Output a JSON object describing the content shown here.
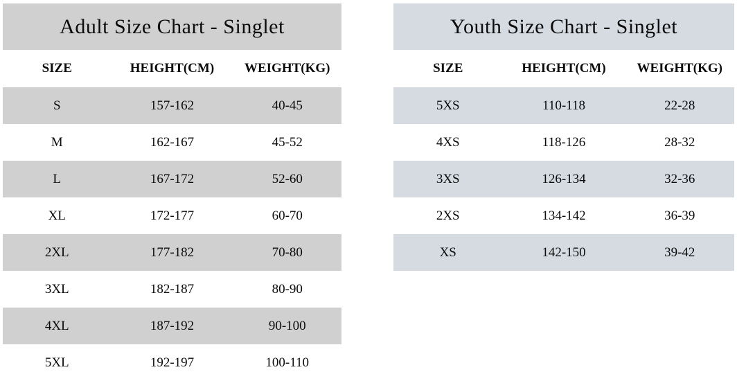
{
  "colors": {
    "background": "#ffffff",
    "text": "#0b0b0b",
    "adult_shade": "#d1d0d0",
    "youth_shade": "#d6dbe2"
  },
  "chart_data": [
    {
      "type": "table",
      "title": "Adult Size Chart - Singlet",
      "columns": [
        "SIZE",
        "HEIGHT(CM)",
        "WEIGHT(KG)"
      ],
      "rows": [
        [
          "S",
          "157-162",
          "40-45"
        ],
        [
          "M",
          "162-167",
          "45-52"
        ],
        [
          "L",
          "167-172",
          "52-60"
        ],
        [
          "XL",
          "172-177",
          "60-70"
        ],
        [
          "2XL",
          "177-182",
          "70-80"
        ],
        [
          "3XL",
          "182-187",
          "80-90"
        ],
        [
          "4XL",
          "187-192",
          "90-100"
        ],
        [
          "5XL",
          "192-197",
          "100-110"
        ]
      ],
      "shade_color": "#d1d0d0",
      "layout": {
        "striped": true,
        "first_data_row_shaded": true,
        "grid": false
      }
    },
    {
      "type": "table",
      "title": "Youth Size Chart - Singlet",
      "columns": [
        "SIZE",
        "HEIGHT(CM)",
        "WEIGHT(KG)"
      ],
      "rows": [
        [
          "5XS",
          "110-118",
          "22-28"
        ],
        [
          "4XS",
          "118-126",
          "28-32"
        ],
        [
          "3XS",
          "126-134",
          "32-36"
        ],
        [
          "2XS",
          "134-142",
          "36-39"
        ],
        [
          "XS",
          "142-150",
          "39-42"
        ]
      ],
      "shade_color": "#d6dbe2",
      "layout": {
        "striped": true,
        "first_data_row_shaded": true,
        "grid": false
      }
    }
  ]
}
